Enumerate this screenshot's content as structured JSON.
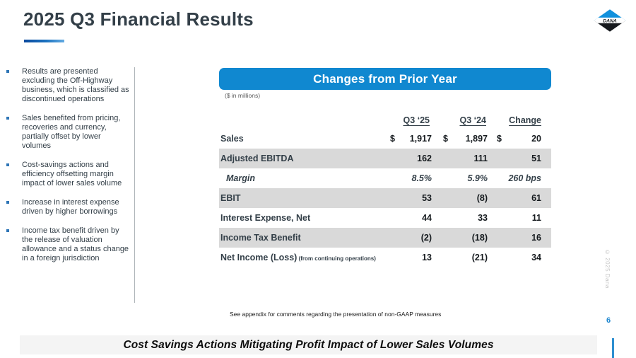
{
  "slide": {
    "title": "2025 Q3 Financial Results",
    "page_number": "6",
    "copyright": "© 2025 Dana",
    "footnote": "See appendix for comments regarding the presentation of non-GAAP measures",
    "footer_banner": "Cost Savings Actions Mitigating Profit Impact of Lower Sales Volumes"
  },
  "logo": {
    "text": "DANA"
  },
  "sidebar": {
    "bullets": [
      "Results are presented excluding the Off-Highway business, which is classified as discontinued operations",
      "Sales benefited from pricing, recoveries and currency, partially offset by lower volumes",
      "Cost-savings actions and efficiency offsetting margin impact of lower sales volume",
      "Increase in interest expense driven by higher borrowings",
      "Income tax benefit driven by the release of valuation allowance and a status change in a foreign jurisdiction"
    ]
  },
  "panel": {
    "header": "Changes from Prior Year",
    "units_note": "($ in millions)"
  },
  "chart_data": {
    "type": "table",
    "title": "Changes from Prior Year",
    "units": "$ in millions",
    "columns": [
      "Q3 ‘25",
      "Q3 ‘24",
      "Change"
    ],
    "rows": [
      {
        "label": "Sales",
        "dollar": true,
        "values": [
          "1,917",
          "1,897",
          "20"
        ],
        "shaded": false,
        "italic": false
      },
      {
        "label": "Adjusted EBITDA",
        "dollar": false,
        "values": [
          "162",
          "111",
          "51"
        ],
        "shaded": true,
        "italic": false
      },
      {
        "label": "Margin",
        "dollar": false,
        "values": [
          "8.5%",
          "5.9%",
          "260 bps"
        ],
        "shaded": false,
        "italic": true
      },
      {
        "label": "EBIT",
        "dollar": false,
        "values": [
          "53",
          "(8)",
          "61"
        ],
        "shaded": true,
        "italic": false
      },
      {
        "label": "Interest Expense, Net",
        "dollar": false,
        "values": [
          "44",
          "33",
          "11"
        ],
        "shaded": false,
        "italic": false
      },
      {
        "label": "Income Tax Benefit",
        "dollar": false,
        "values": [
          "(2)",
          "(18)",
          "16"
        ],
        "shaded": true,
        "italic": false
      },
      {
        "label": "Net Income (Loss)",
        "label_suffix": "(from continuing operations)",
        "dollar": false,
        "values": [
          "13",
          "(21)",
          "34"
        ],
        "shaded": false,
        "italic": false
      }
    ]
  },
  "colors": {
    "accent_blue": "#1088d0",
    "title_text": "#333F48",
    "shaded_row": "#d9d9d9",
    "page_number_blue": "#1e87d0"
  }
}
